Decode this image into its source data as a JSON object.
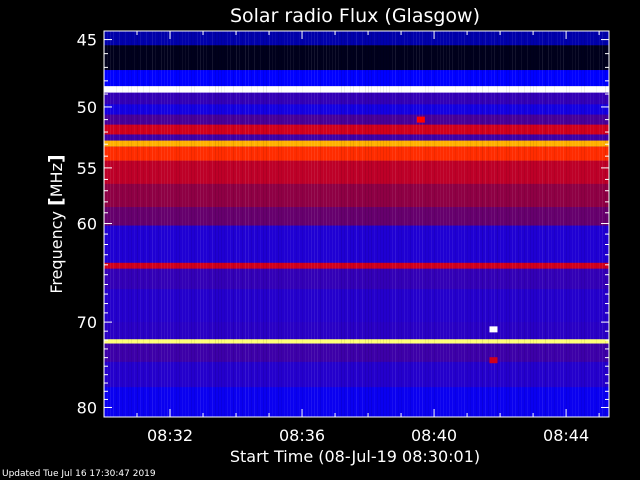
{
  "footer_text": "Updated Tue Jul 16 17:30:47 2019",
  "chart_data": {
    "type": "heatmap",
    "title": "Solar radio Flux (Glasgow)",
    "xlabel": "Start Time (08-Jul-19 08:30:01)",
    "ylabel_parts": [
      "Frequency ",
      "[",
      "MHz",
      "]"
    ],
    "x_tick_labels": [
      "08:32",
      "08:36",
      "08:40",
      "08:44"
    ],
    "x_tick_minutes": [
      2,
      6,
      10,
      14
    ],
    "x_range_minutes": [
      0,
      15.3
    ],
    "y_tick_labels": [
      "45",
      "50",
      "55",
      "60",
      "70",
      "80"
    ],
    "y_ticks": [
      45,
      50,
      55,
      60,
      70,
      80
    ],
    "y_scale": "log",
    "y_range_mhz": [
      44.4,
      81.2
    ],
    "colorscale": [
      "#000000",
      "#0000ff",
      "#7a0050",
      "#ff0000",
      "#ffff00",
      "#ffffff"
    ],
    "background_level": 0.25,
    "bands": [
      {
        "from": 44.4,
        "to": 45.4,
        "level": 0.12
      },
      {
        "from": 45.4,
        "to": 47.2,
        "level": 0.02
      },
      {
        "from": 47.2,
        "to": 48.4,
        "level": 0.18
      },
      {
        "from": 48.4,
        "to": 48.9,
        "level": 1.0
      },
      {
        "from": 48.9,
        "to": 49.8,
        "level": 0.28
      },
      {
        "from": 49.8,
        "to": 50.6,
        "level": 0.22
      },
      {
        "from": 50.6,
        "to": 51.4,
        "level": 0.32
      },
      {
        "from": 51.4,
        "to": 52.2,
        "level": 0.55
      },
      {
        "from": 52.2,
        "to": 52.7,
        "level": 0.3
      },
      {
        "from": 52.7,
        "to": 53.2,
        "level": 0.78
      },
      {
        "from": 53.2,
        "to": 54.4,
        "level": 0.66
      },
      {
        "from": 54.4,
        "to": 56.4,
        "level": 0.52
      },
      {
        "from": 56.4,
        "to": 58.5,
        "level": 0.45
      },
      {
        "from": 58.5,
        "to": 60.2,
        "level": 0.38
      },
      {
        "from": 60.2,
        "to": 63.8,
        "level": 0.24
      },
      {
        "from": 63.8,
        "to": 64.4,
        "level": 0.55
      },
      {
        "from": 64.4,
        "to": 66.5,
        "level": 0.28
      },
      {
        "from": 66.5,
        "to": 70.0,
        "level": 0.25
      },
      {
        "from": 70.0,
        "to": 71.9,
        "level": 0.26
      },
      {
        "from": 71.9,
        "to": 72.4,
        "level": 0.92
      },
      {
        "from": 72.4,
        "to": 74.5,
        "level": 0.3
      },
      {
        "from": 74.5,
        "to": 77.5,
        "level": 0.25
      },
      {
        "from": 77.5,
        "to": 81.2,
        "level": 0.2
      }
    ],
    "events": [
      {
        "minute": 11.8,
        "mhz": 70.8,
        "level": 1.0
      },
      {
        "minute": 11.8,
        "mhz": 74.3,
        "level": 0.55
      },
      {
        "minute": 9.6,
        "mhz": 51.0,
        "level": 0.62
      }
    ]
  }
}
